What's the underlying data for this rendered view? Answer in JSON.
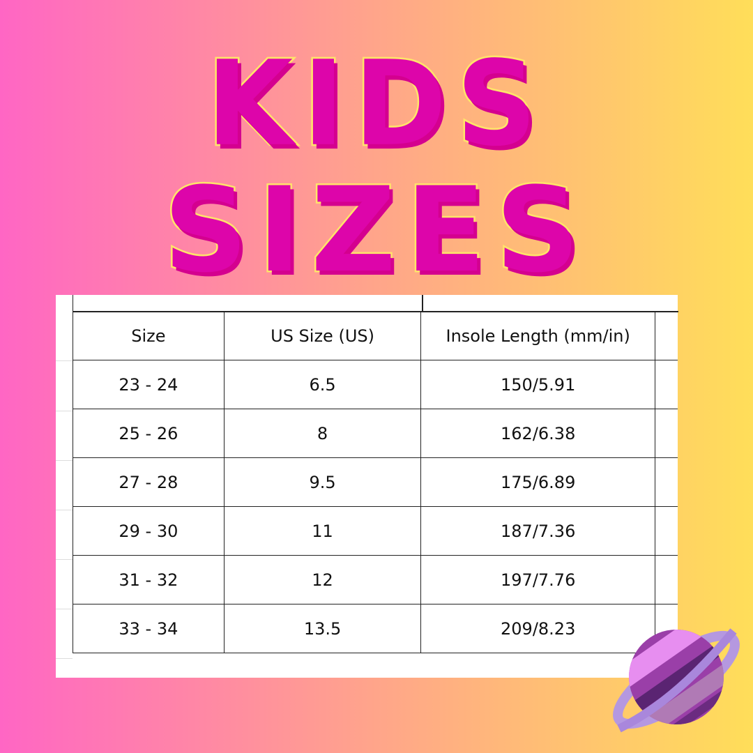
{
  "title": {
    "line1": "KIDS",
    "line2": "SIZES"
  },
  "table": {
    "headers": [
      "Size",
      "US Size (US)",
      "Insole Length (mm/in)"
    ],
    "rows": [
      [
        "23 - 24",
        "6.5",
        "150/5.91"
      ],
      [
        "25 - 26",
        "8",
        "162/6.38"
      ],
      [
        "27 - 28",
        "9.5",
        "175/6.89"
      ],
      [
        "29 - 30",
        "11",
        "187/7.36"
      ],
      [
        "31 - 32",
        "12",
        "197/7.76"
      ],
      [
        "33 - 34",
        "13.5",
        "209/8.23"
      ]
    ]
  },
  "colors": {
    "title": "#dd05aa",
    "title_outline": "#ffe46a",
    "gradient_left": "#ff66c4",
    "gradient_right": "#ffde59"
  },
  "decoration": {
    "icon": "saturn-planet-icon"
  }
}
